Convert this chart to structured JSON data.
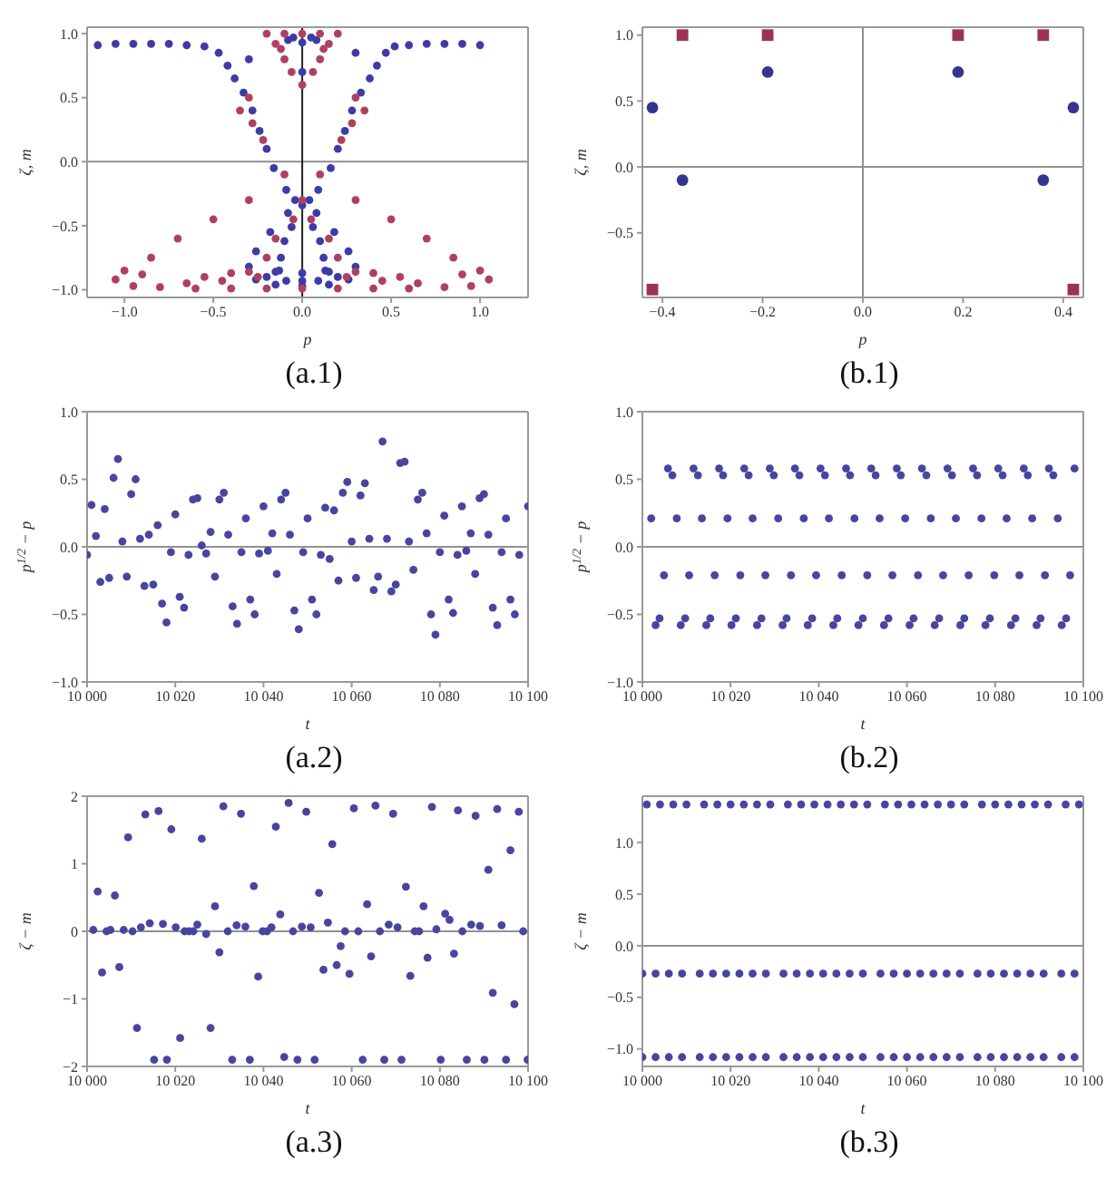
{
  "chart_data": [
    {
      "type": "scatter",
      "xlabel": "p",
      "ylabel": "ζ, m",
      "annotations": [
        "(a.1)"
      ],
      "xlim": [
        -1.21,
        1.27
      ],
      "ylim": [
        -1.06,
        1.05
      ],
      "xticks": [
        {
          "value": -1,
          "label": "−1.0"
        },
        {
          "value": -0.5,
          "label": "−0.5"
        },
        {
          "value": 0,
          "label": "0.0"
        },
        0.5,
        {
          "value": 1,
          "label": "1.0"
        }
      ],
      "yticks": [
        {
          "value": -1,
          "label": "−1.0"
        },
        {
          "value": -0.5,
          "label": "−0.5"
        },
        {
          "value": 0,
          "label": "0.0"
        },
        0.5,
        {
          "value": 1,
          "label": "1.0"
        }
      ],
      "marker": "circle",
      "ref_lines": [
        {
          "axis": "y",
          "value": 0,
          "color": "#909090"
        },
        {
          "axis": "x",
          "value": 0,
          "color": "#202020"
        }
      ],
      "series": [
        {
          "color": "#3c3ca8",
          "x": [
            -1.15,
            -1.05,
            -0.95,
            -0.85,
            -0.75,
            -0.65,
            -0.55,
            -0.47,
            -0.42,
            -0.38,
            -0.33,
            -0.28,
            -0.24,
            -0.2,
            -0.16,
            -0.09,
            -0.04,
            0,
            0.06,
            0.1,
            0.12,
            0.13,
            0.09,
            1.0,
            0.9,
            0.8,
            0.7,
            0.6,
            0.52,
            0.47,
            0.42,
            0.38,
            0.33,
            0.28,
            0.24,
            0.2,
            0.16,
            0.09,
            0.04,
            -0.06,
            -0.1,
            -0.12,
            -0.13,
            -0.09,
            -0.08,
            -0.18,
            -0.26,
            -0.3,
            -0.26,
            0.08,
            0.18,
            0.26,
            0.3,
            0.26,
            -0.2,
            -0.15,
            0,
            0.15,
            0.2,
            0.15,
            0,
            -0.15,
            0,
            -0.05,
            0.05,
            0,
            0.08,
            -0.08,
            0,
            -0.3,
            0.3
          ],
          "values": [
            0.91,
            0.92,
            0.92,
            0.92,
            0.92,
            0.91,
            0.9,
            0.85,
            0.75,
            0.65,
            0.54,
            0.4,
            0.24,
            0.1,
            -0.05,
            -0.22,
            -0.3,
            -0.34,
            -0.51,
            -0.62,
            -0.75,
            -0.85,
            -0.93,
            0.91,
            0.92,
            0.92,
            0.92,
            0.91,
            0.9,
            0.85,
            0.75,
            0.65,
            0.54,
            0.4,
            0.24,
            0.1,
            -0.05,
            -0.22,
            -0.3,
            -0.51,
            -0.62,
            -0.75,
            -0.85,
            -0.93,
            -0.4,
            -0.55,
            -0.7,
            -0.82,
            -0.92,
            -0.4,
            -0.55,
            -0.7,
            -0.82,
            -0.92,
            -0.9,
            -0.86,
            -0.87,
            -0.86,
            -0.9,
            -0.96,
            -0.97,
            -0.96,
            -0.93,
            0.97,
            0.97,
            0.93,
            0.95,
            0.95,
            0.7,
            0.8,
            0.85
          ]
        },
        {
          "color": "#b0405f",
          "x": [
            -0.2,
            -0.1,
            0,
            0.1,
            0.2,
            -0.15,
            0.15,
            -0.1,
            0.1,
            -0.06,
            0.06,
            0,
            -0.12,
            0.12,
            -0.3,
            0.3,
            -0.35,
            0.35,
            -0.28,
            0.28,
            -0.22,
            0.22,
            -0.1,
            0.1,
            0,
            -0.05,
            0.05,
            -0.15,
            0.15,
            -0.2,
            0.2,
            -0.3,
            -0.5,
            -0.7,
            -0.85,
            0.3,
            0.5,
            0.7,
            0.85,
            -1.0,
            -1.05,
            -0.95,
            -0.8,
            -0.6,
            -0.4,
            -0.2,
            0,
            0.2,
            0.4,
            0.6,
            0.8,
            0.95,
            1.05,
            1.0,
            -0.9,
            0.9,
            -0.65,
            -0.55,
            -0.4,
            -0.3,
            0.3,
            0.4,
            0.55,
            0.65,
            -0.45,
            0.45,
            -0.25,
            0.25
          ],
          "values": [
            1.0,
            1.0,
            1.0,
            1.0,
            1.0,
            0.92,
            0.92,
            0.8,
            0.8,
            0.7,
            0.7,
            0.6,
            0.88,
            0.88,
            0.5,
            0.5,
            0.4,
            0.4,
            0.3,
            0.3,
            0.17,
            0.17,
            -0.1,
            -0.1,
            -0.3,
            -0.45,
            -0.45,
            -0.6,
            -0.6,
            -0.75,
            -0.75,
            -0.3,
            -0.45,
            -0.6,
            -0.75,
            -0.3,
            -0.45,
            -0.6,
            -0.75,
            -0.85,
            -0.92,
            -0.97,
            -0.98,
            -0.99,
            -0.99,
            -0.99,
            -0.99,
            -0.99,
            -0.99,
            -0.99,
            -0.98,
            -0.97,
            -0.92,
            -0.85,
            -0.88,
            -0.88,
            -0.95,
            -0.9,
            -0.87,
            -0.86,
            -0.86,
            -0.87,
            -0.9,
            -0.95,
            -0.93,
            -0.93,
            -0.9,
            -0.9
          ]
        }
      ]
    },
    {
      "type": "scatter",
      "xlabel": "p",
      "ylabel": "ζ, m",
      "annotations": [
        "(b.1)"
      ],
      "xlim": [
        -0.44,
        0.44
      ],
      "ylim": [
        -0.99,
        1.06
      ],
      "xticks": [
        {
          "value": -0.4,
          "label": "−0.4"
        },
        {
          "value": -0.2,
          "label": "−0.2"
        },
        {
          "value": 0,
          "label": "0.0"
        },
        0.2,
        0.4
      ],
      "yticks": [
        {
          "value": -0.5,
          "label": "−0.5"
        },
        {
          "value": 0,
          "label": "0.0"
        },
        0.5,
        {
          "value": 1,
          "label": "1.0"
        }
      ],
      "ref_lines": [
        {
          "axis": "y",
          "value": 0,
          "color": "#909090"
        },
        {
          "axis": "x",
          "value": 0,
          "color": "#909090"
        }
      ],
      "series": [
        {
          "color": "#353590",
          "marker": "circle",
          "x": [
            -0.42,
            -0.36,
            -0.19,
            0.19,
            0.36,
            0.42
          ],
          "values": [
            0.45,
            -0.1,
            0.72,
            0.72,
            -0.1,
            0.45
          ]
        },
        {
          "color": "#9c3355",
          "marker": "square",
          "x": [
            -0.42,
            -0.36,
            -0.19,
            0.19,
            0.36,
            0.42
          ],
          "values": [
            -0.93,
            1.0,
            1.0,
            1.0,
            1.0,
            -0.93
          ]
        }
      ]
    },
    {
      "type": "scatter",
      "xlabel": "t",
      "ylabel": "p$^{1/2}$ − p",
      "annotations": [
        "(a.2)"
      ],
      "xlim": [
        10000,
        10100
      ],
      "ylim": [
        -1,
        1
      ],
      "xticks": [
        {
          "value": 10000,
          "label": "10 000"
        },
        {
          "value": 10020,
          "label": "10 020"
        },
        {
          "value": 10040,
          "label": "10 040"
        },
        {
          "value": 10060,
          "label": "10 060"
        },
        {
          "value": 10080,
          "label": "10 080"
        },
        {
          "value": 10100,
          "label": "10 100"
        }
      ],
      "yticks": [
        {
          "value": -1,
          "label": "−1.0"
        },
        {
          "value": -0.5,
          "label": "−0.5"
        },
        {
          "value": 0,
          "label": "0.0"
        },
        0.5,
        {
          "value": 1,
          "label": "1.0"
        }
      ],
      "marker": "circle",
      "ref_lines": [
        {
          "axis": "y",
          "value": 0,
          "color": "#909090"
        }
      ],
      "x": [
        10000,
        10001,
        10002,
        10003,
        10004,
        10005,
        10006,
        10007,
        10008,
        10009,
        10010,
        10011,
        10012,
        10013,
        10014,
        10015,
        10016,
        10017,
        10018,
        10019,
        10020,
        10021,
        10022,
        10023,
        10024,
        10025,
        10026,
        10027,
        10028,
        10029,
        10030,
        10031,
        10032,
        10033,
        10034,
        10035,
        10036,
        10037,
        10038,
        10039,
        10040,
        10041,
        10042,
        10043,
        10044,
        10045,
        10046,
        10047,
        10048,
        10049,
        10050,
        10051,
        10052,
        10053,
        10054,
        10055,
        10056,
        10057,
        10058,
        10059,
        10060,
        10061,
        10062,
        10063,
        10064,
        10065,
        10066,
        10067,
        10068,
        10069,
        10070,
        10071,
        10072,
        10073,
        10074,
        10075,
        10076,
        10077,
        10078,
        10079,
        10080,
        10081,
        10082,
        10083,
        10084,
        10085,
        10086,
        10087,
        10088,
        10089,
        10090,
        10091,
        10092,
        10093,
        10094,
        10095,
        10096,
        10097,
        10098,
        10100
      ],
      "series": [
        {
          "color": "#4646a0",
          "values": [
            -0.06,
            0.31,
            0.08,
            -0.26,
            0.28,
            -0.23,
            0.51,
            0.65,
            0.04,
            -0.22,
            0.39,
            0.5,
            0.06,
            -0.29,
            0.09,
            -0.28,
            0.16,
            -0.42,
            -0.56,
            -0.04,
            0.24,
            -0.37,
            -0.45,
            -0.06,
            0.35,
            0.36,
            0.01,
            -0.05,
            0.11,
            -0.22,
            0.35,
            0.4,
            0.09,
            -0.44,
            -0.57,
            -0.04,
            0.21,
            -0.39,
            -0.5,
            -0.05,
            0.3,
            -0.03,
            0.1,
            -0.2,
            0.35,
            0.4,
            0.09,
            -0.47,
            -0.61,
            -0.04,
            0.21,
            -0.39,
            -0.5,
            -0.06,
            0.29,
            -0.09,
            0.27,
            -0.25,
            0.4,
            0.48,
            0.04,
            -0.23,
            0.38,
            0.47,
            0.06,
            -0.32,
            -0.22,
            0.78,
            0.06,
            -0.33,
            -0.28,
            0.62,
            0.63,
            0.04,
            -0.17,
            0.35,
            0.4,
            0.1,
            -0.5,
            -0.65,
            -0.04,
            0.23,
            -0.39,
            -0.49,
            -0.06,
            0.3,
            -0.03,
            0.1,
            -0.2,
            0.36,
            0.39,
            0.09,
            -0.45,
            -0.58,
            -0.04,
            0.21,
            -0.39,
            -0.5,
            -0.06,
            0.3
          ]
        }
      ]
    },
    {
      "type": "scatter",
      "xlabel": "t",
      "ylabel": "p$^{1/2}$ − p",
      "annotations": [
        "(b.2)"
      ],
      "xlim": [
        10000,
        10100
      ],
      "ylim": [
        -1,
        1
      ],
      "xticks": [
        {
          "value": 10000,
          "label": "10 000"
        },
        {
          "value": 10020,
          "label": "10 020"
        },
        {
          "value": 10040,
          "label": "10 040"
        },
        {
          "value": 10060,
          "label": "10 060"
        },
        {
          "value": 10080,
          "label": "10 080"
        },
        {
          "value": 10100,
          "label": "10 100"
        }
      ],
      "yticks": [
        {
          "value": -1,
          "label": "−1.0"
        },
        {
          "value": -0.5,
          "label": "−0.5"
        },
        {
          "value": 0,
          "label": "0.0"
        },
        0.5,
        {
          "value": 1,
          "label": "1.0"
        }
      ],
      "marker": "circle",
      "ref_lines": [
        {
          "axis": "y",
          "value": 0,
          "color": "#909090"
        }
      ],
      "x": [
        10002.0,
        10003.0,
        10003.9,
        10004.9,
        10005.8,
        10006.8,
        10007.8,
        10008.7,
        10009.7,
        10010.6,
        10011.6,
        10012.6,
        10013.5,
        10014.5,
        10015.4,
        10016.4,
        10017.4,
        10018.3,
        10019.3,
        10020.2,
        10021.2,
        10022.2,
        10023.1,
        10024.1,
        10025.0,
        10026.0,
        10027.0,
        10027.9,
        10028.9,
        10029.8,
        10030.8,
        10031.8,
        10032.7,
        10033.7,
        10034.6,
        10035.6,
        10036.6,
        10037.5,
        10038.5,
        10039.4,
        10040.4,
        10041.4,
        10042.3,
        10043.3,
        10044.2,
        10045.2,
        10046.2,
        10047.1,
        10048.1,
        10049.0,
        10050.0,
        10051.0,
        10051.9,
        10052.9,
        10053.8,
        10054.8,
        10055.8,
        10056.7,
        10057.7,
        10058.6,
        10059.6,
        10060.6,
        10061.5,
        10062.5,
        10063.4,
        10064.4,
        10065.4,
        10066.3,
        10067.3,
        10068.2,
        10069.2,
        10070.2,
        10071.1,
        10072.1,
        10073.0,
        10074.0,
        10075.0,
        10075.9,
        10076.9,
        10077.8,
        10078.8,
        10079.8,
        10080.7,
        10081.7,
        10082.6,
        10083.6,
        10084.6,
        10085.5,
        10086.5,
        10087.4,
        10088.4,
        10089.4,
        10090.3,
        10091.3,
        10092.2,
        10093.2,
        10094.2,
        10095.1,
        10096.1,
        10097.0,
        10098.0
      ],
      "series": [
        {
          "color": "#4646a0",
          "values": [
            0.21,
            -0.58,
            -0.53,
            -0.21,
            0.58,
            0.53,
            0.21,
            -0.58,
            -0.53,
            -0.21,
            0.58,
            0.53,
            0.21,
            -0.58,
            -0.53,
            -0.21,
            0.58,
            0.53,
            0.21,
            -0.58,
            -0.53,
            -0.21,
            0.58,
            0.53,
            0.21,
            -0.58,
            -0.53,
            -0.21,
            0.58,
            0.53,
            0.21,
            -0.58,
            -0.53,
            -0.21,
            0.58,
            0.53,
            0.21,
            -0.58,
            -0.53,
            -0.21,
            0.58,
            0.53,
            0.21,
            -0.58,
            -0.53,
            -0.21,
            0.58,
            0.53,
            0.21,
            -0.58,
            -0.53,
            -0.21,
            0.58,
            0.53,
            0.21,
            -0.58,
            -0.53,
            -0.21,
            0.58,
            0.53,
            0.21,
            -0.58,
            -0.53,
            -0.21,
            0.58,
            0.53,
            0.21,
            -0.58,
            -0.53,
            -0.21,
            0.58,
            0.53,
            0.21,
            -0.58,
            -0.53,
            -0.21,
            0.58,
            0.53,
            0.21,
            -0.58,
            -0.53,
            -0.21,
            0.58,
            0.53,
            0.21,
            -0.58,
            -0.53,
            -0.21,
            0.58,
            0.53,
            0.21,
            -0.58,
            -0.53,
            -0.21,
            0.58,
            0.53,
            0.21,
            -0.58,
            -0.53,
            -0.21,
            0.58
          ]
        }
      ]
    },
    {
      "type": "scatter",
      "xlabel": "t",
      "ylabel": "ζ − m",
      "annotations": [
        "(a.3)"
      ],
      "xlim": [
        10000,
        10100
      ],
      "ylim": [
        -2,
        2
      ],
      "xticks": [
        {
          "value": 10000,
          "label": "10 000"
        },
        {
          "value": 10020,
          "label": "10 020"
        },
        {
          "value": 10040,
          "label": "10 040"
        },
        {
          "value": 10060,
          "label": "10 060"
        },
        {
          "value": 10080,
          "label": "10 080"
        },
        {
          "value": 10100,
          "label": "10 100"
        }
      ],
      "yticks": [
        {
          "value": -2,
          "label": "−2"
        },
        {
          "value": -1,
          "label": "−1"
        },
        0,
        1,
        2
      ],
      "marker": "circle",
      "ref_lines": [
        {
          "axis": "y",
          "value": 0,
          "color": "#909090"
        }
      ],
      "x": [
        10001.4,
        10002.4,
        10003.4,
        10004.4,
        10005.3,
        10006.3,
        10007.3,
        10008.3,
        10009.3,
        10010.3,
        10011.3,
        10012.2,
        10013.2,
        10014.2,
        10015.2,
        10016.2,
        10017.2,
        10018.1,
        10019.1,
        10020.1,
        10021.1,
        10022.1,
        10023.1,
        10024.1,
        10025.0,
        10026.0,
        10027.0,
        10028.0,
        10029.0,
        10030.0,
        10030.9,
        10031.9,
        10032.9,
        10033.9,
        10034.9,
        10035.9,
        10036.9,
        10037.8,
        10038.8,
        10039.8,
        10040.8,
        10041.8,
        10042.8,
        10043.8,
        10044.7,
        10045.7,
        10046.7,
        10047.7,
        10048.7,
        10049.7,
        10050.7,
        10051.6,
        10052.6,
        10053.6,
        10054.6,
        10055.6,
        10056.6,
        10057.5,
        10058.5,
        10059.5,
        10060.5,
        10061.5,
        10062.5,
        10063.5,
        10064.4,
        10065.4,
        10066.4,
        10067.4,
        10068.4,
        10069.4,
        10070.4,
        10071.3,
        10072.3,
        10073.3,
        10074.3,
        10075.3,
        10076.3,
        10077.2,
        10078.2,
        10079.2,
        10080.2,
        10081.2,
        10082.2,
        10083.2,
        10084.1,
        10085.1,
        10086.1,
        10087.1,
        10088.1,
        10089.1,
        10090.1,
        10091.0,
        10092.0,
        10093.0,
        10094.0,
        10095.0,
        10096.0,
        10096.9,
        10097.9,
        10098.9,
        10099.9
      ],
      "series": [
        {
          "color": "#4646a0",
          "values": [
            0.02,
            0.59,
            -0.61,
            0,
            0.02,
            0.53,
            -0.53,
            0.02,
            1.39,
            0,
            -1.43,
            0.06,
            1.73,
            0.12,
            -1.9,
            1.78,
            0.11,
            -1.9,
            1.51,
            0.06,
            -1.58,
            0,
            0,
            0,
            0.1,
            1.37,
            -0.04,
            -1.43,
            0.37,
            -0.31,
            1.85,
            0,
            -1.9,
            0.09,
            1.74,
            0.07,
            -1.9,
            0.67,
            -0.67,
            0,
            0,
            0.06,
            1.55,
            0.25,
            -1.86,
            1.9,
            0,
            -1.9,
            0.07,
            1.77,
            0.06,
            -1.9,
            0.57,
            -0.57,
            0.13,
            1.29,
            -0.5,
            -0.22,
            0,
            -0.63,
            1.82,
            0,
            -1.9,
            0.4,
            -0.37,
            1.86,
            0,
            -1.9,
            0.1,
            1.74,
            0.06,
            -1.9,
            0.66,
            -0.66,
            0,
            0,
            0.37,
            -0.39,
            1.84,
            0.03,
            -1.9,
            0.26,
            0.17,
            -0.33,
            1.79,
            0,
            -1.9,
            0.1,
            1.71,
            0.08,
            -1.9,
            0.91,
            -0.91,
            1.81,
            0.09,
            -1.9,
            1.2,
            -1.08,
            1.77,
            0,
            -1.9
          ]
        }
      ]
    },
    {
      "type": "scatter",
      "xlabel": "t",
      "ylabel": "ζ − m",
      "annotations": [
        "(b.3)"
      ],
      "xlim": [
        10000,
        10100
      ],
      "ylim": [
        -1.17,
        1.45
      ],
      "xticks": [
        {
          "value": 10000,
          "label": "10 000"
        },
        {
          "value": 10020,
          "label": "10 020"
        },
        {
          "value": 10040,
          "label": "10 040"
        },
        {
          "value": 10060,
          "label": "10 060"
        },
        {
          "value": 10080,
          "label": "10 080"
        },
        {
          "value": 10100,
          "label": "10 100"
        }
      ],
      "yticks": [
        {
          "value": -1,
          "label": "−1.0"
        },
        {
          "value": -0.5,
          "label": "−0.5"
        },
        {
          "value": 0,
          "label": "0.0"
        },
        0.5,
        {
          "value": 1,
          "label": "1.0"
        }
      ],
      "marker": "circle",
      "ref_lines": [
        {
          "axis": "y",
          "value": 0,
          "color": "#909090"
        }
      ],
      "x": [
        10000,
        10003,
        10006,
        10009,
        10013,
        10016,
        10019,
        10022,
        10025,
        10028,
        10032,
        10035,
        10038,
        10041,
        10044,
        10047,
        10050,
        10054,
        10057,
        10060,
        10063,
        10066,
        10069,
        10072,
        10076,
        10079,
        10082,
        10085,
        10088,
        10091,
        10095,
        10098
      ],
      "series": [
        {
          "color": "#4646a0",
          "x": [
            10001,
            10004,
            10007,
            10010,
            10014,
            10017,
            10020,
            10023,
            10026,
            10029,
            10033,
            10036,
            10039,
            10042,
            10045,
            10048,
            10051,
            10055,
            10058,
            10061,
            10064,
            10067,
            10070,
            10073,
            10077,
            10080,
            10083,
            10086,
            10089,
            10092,
            10096,
            10099
          ],
          "values": [
            1.37,
            1.37,
            1.37,
            1.37,
            1.37,
            1.37,
            1.37,
            1.37,
            1.37,
            1.37,
            1.37,
            1.37,
            1.37,
            1.37,
            1.37,
            1.37,
            1.37,
            1.37,
            1.37,
            1.37,
            1.37,
            1.37,
            1.37,
            1.37,
            1.37,
            1.37,
            1.37,
            1.37,
            1.37,
            1.37,
            1.37,
            1.37
          ]
        },
        {
          "color": "#4646a0",
          "values": [
            -0.27,
            -0.27,
            -0.27,
            -0.27,
            -0.27,
            -0.27,
            -0.27,
            -0.27,
            -0.27,
            -0.27,
            -0.27,
            -0.27,
            -0.27,
            -0.27,
            -0.27,
            -0.27,
            -0.27,
            -0.27,
            -0.27,
            -0.27,
            -0.27,
            -0.27,
            -0.27,
            -0.27,
            -0.27,
            -0.27,
            -0.27,
            -0.27,
            -0.27,
            -0.27,
            -0.27,
            -0.27
          ]
        },
        {
          "color": "#4646a0",
          "values": [
            -1.08,
            -1.08,
            -1.08,
            -1.08,
            -1.08,
            -1.08,
            -1.08,
            -1.08,
            -1.08,
            -1.08,
            -1.08,
            -1.08,
            -1.08,
            -1.08,
            -1.08,
            -1.08,
            -1.08,
            -1.08,
            -1.08,
            -1.08,
            -1.08,
            -1.08,
            -1.08,
            -1.08,
            -1.08,
            -1.08,
            -1.08,
            -1.08,
            -1.08,
            -1.08,
            -1.08,
            -1.08
          ]
        }
      ]
    }
  ]
}
